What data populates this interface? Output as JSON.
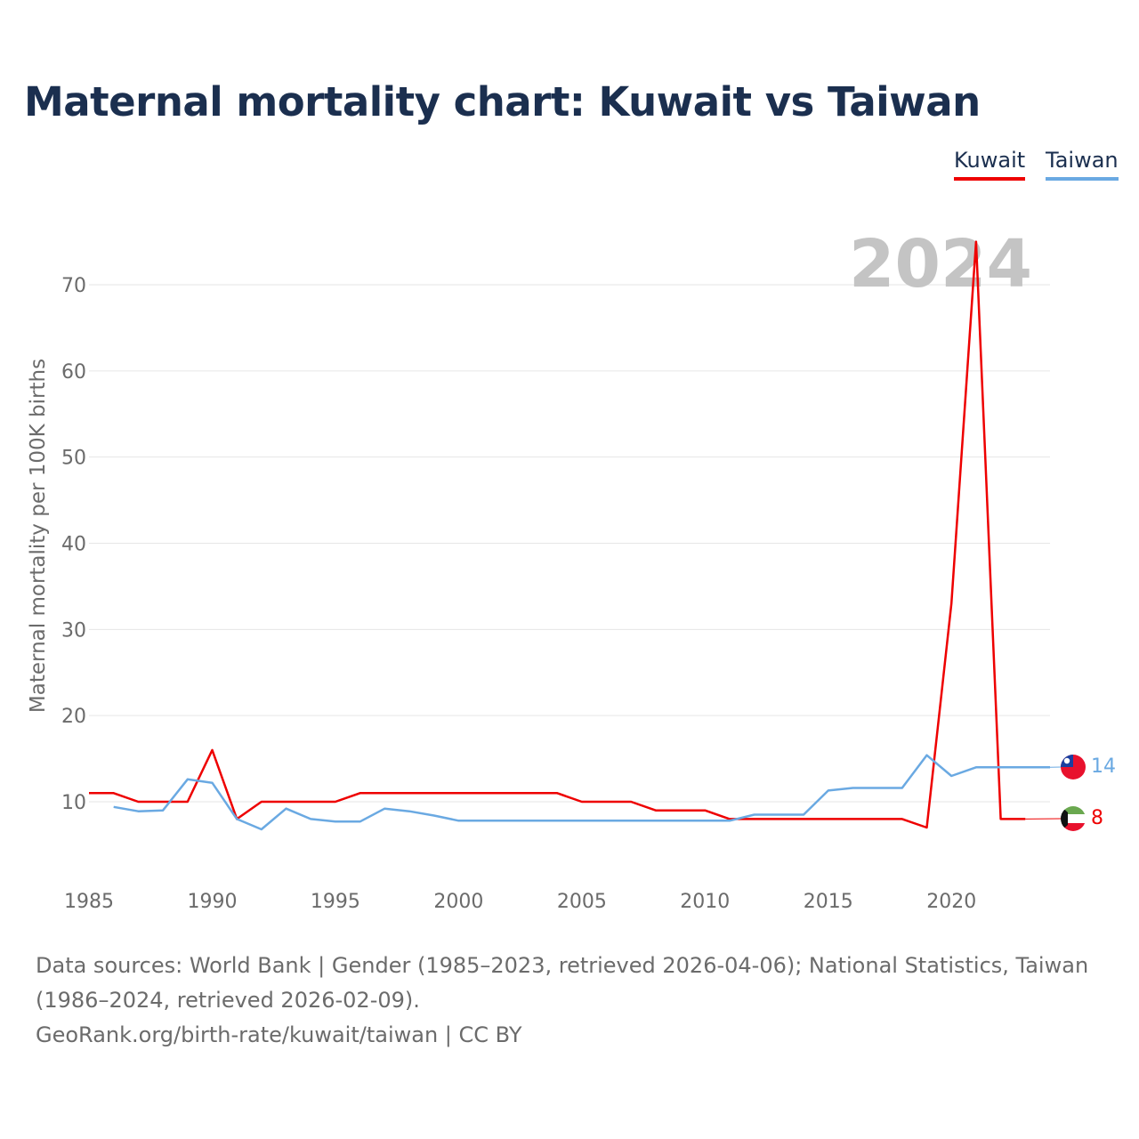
{
  "title": "Maternal mortality chart: Kuwait vs Taiwan",
  "legend": [
    {
      "label": "Kuwait",
      "color": "#ee0000"
    },
    {
      "label": "Taiwan",
      "color": "#6aa9e2"
    }
  ],
  "footer": {
    "line1": "Data sources: World Bank | Gender (1985–2023, retrieved 2026-04-06); National Statistics, Taiwan",
    "line2": "(1986–2024, retrieved 2026-02-09).",
    "line3": "GeoRank.org/birth-rate/kuwait/taiwan | CC BY"
  },
  "chart_data": {
    "type": "line",
    "title": "Maternal mortality chart: Kuwait vs Taiwan",
    "ylabel": "Maternal mortality per 100K births",
    "xlabel": "",
    "xlim": [
      1985,
      2024
    ],
    "ylim": [
      0,
      75
    ],
    "x_ticks": [
      1985,
      1990,
      1995,
      2000,
      2005,
      2010,
      2015,
      2020
    ],
    "y_ticks": [
      10,
      20,
      30,
      40,
      50,
      60,
      70
    ],
    "year_watermark": "2024",
    "series": [
      {
        "name": "Kuwait",
        "color": "#ee0000",
        "flag": "kuwait",
        "end_label": "8",
        "x": [
          1985,
          1986,
          1987,
          1988,
          1989,
          1990,
          1991,
          1992,
          1993,
          1994,
          1995,
          1996,
          1997,
          1998,
          1999,
          2000,
          2001,
          2002,
          2003,
          2004,
          2005,
          2006,
          2007,
          2008,
          2009,
          2010,
          2011,
          2012,
          2013,
          2014,
          2015,
          2016,
          2017,
          2018,
          2019,
          2020,
          2021,
          2022,
          2023
        ],
        "values": [
          11,
          11,
          10,
          10,
          10,
          16,
          8,
          10,
          10,
          10,
          10,
          11,
          11,
          11,
          11,
          11,
          11,
          11,
          11,
          11,
          10,
          10,
          10,
          9,
          9,
          9,
          8,
          8,
          8,
          8,
          8,
          8,
          8,
          8,
          7,
          33,
          75,
          8,
          8
        ]
      },
      {
        "name": "Taiwan",
        "color": "#6aa9e2",
        "flag": "taiwan",
        "end_label": "14",
        "x": [
          1986,
          1987,
          1988,
          1989,
          1990,
          1991,
          1992,
          1993,
          1994,
          1995,
          1996,
          1997,
          1998,
          1999,
          2000,
          2001,
          2002,
          2003,
          2004,
          2005,
          2006,
          2007,
          2008,
          2009,
          2010,
          2011,
          2012,
          2013,
          2014,
          2015,
          2016,
          2017,
          2018,
          2019,
          2020,
          2021,
          2022,
          2023,
          2024
        ],
        "values": [
          9.4,
          8.9,
          9.0,
          12.6,
          12.2,
          8.0,
          6.8,
          9.2,
          8.0,
          7.7,
          7.7,
          9.2,
          8.9,
          8.4,
          7.8,
          7.8,
          7.8,
          7.8,
          7.8,
          7.8,
          7.8,
          7.8,
          7.8,
          7.8,
          7.8,
          7.8,
          8.5,
          8.5,
          8.5,
          11.3,
          11.6,
          11.6,
          11.6,
          15.4,
          13.0,
          14.0,
          14.0,
          14.0,
          14.0
        ]
      }
    ]
  }
}
